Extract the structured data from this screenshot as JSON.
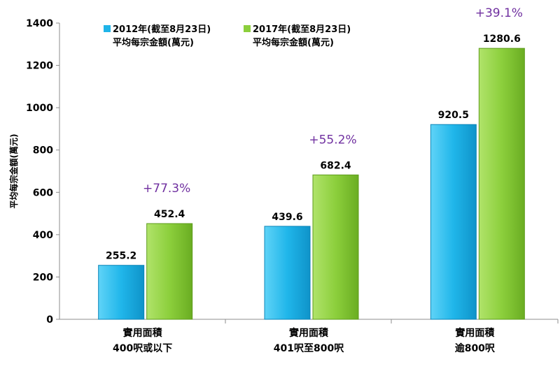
{
  "chart_data": {
    "type": "bar",
    "ylabel": "平均每宗金額(萬元)",
    "ylim": [
      0,
      1400
    ],
    "yticks": [
      0,
      200,
      400,
      600,
      800,
      1000,
      1200,
      1400
    ],
    "grid": false,
    "legend_placement": "top-left",
    "categories": [
      {
        "line1": "實用面積",
        "line2": "400呎或以下"
      },
      {
        "line1": "實用面積",
        "line2": "401呎至800呎"
      },
      {
        "line1": "實用面積",
        "line2": "逾800呎"
      }
    ],
    "series": [
      {
        "name_line1": "2012年(截至8月23日)",
        "name_line2": "平均每宗金額(萬元)",
        "color": "#1fb4e8",
        "values": [
          255.2,
          439.6,
          920.5
        ]
      },
      {
        "name_line1": "2017年(截至8月23日)",
        "name_line2": "平均每宗金額(萬元)",
        "color": "#8ccf3c",
        "values": [
          452.4,
          682.4,
          1280.6
        ]
      }
    ],
    "annotations": [
      "+77.3%",
      "+55.2%",
      "+39.1%"
    ]
  }
}
